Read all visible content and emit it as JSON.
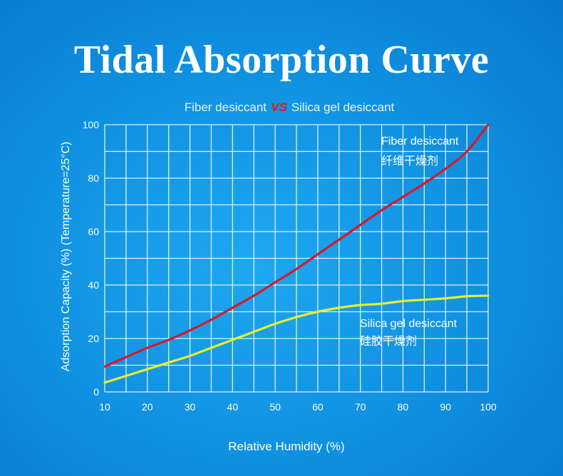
{
  "title": "Tidal Absorption Curve",
  "subtitle": {
    "left": "Fiber desiccant",
    "vs": "VS",
    "right": "Silica gel desiccant"
  },
  "colors": {
    "fiber": "#d9182a",
    "silica": "#e6ef2a",
    "grid": "#ffffff",
    "text": "#ffffff"
  },
  "chart_data": {
    "type": "line",
    "xlabel": "Relative Humidity (%)",
    "ylabel": "Adsorption Capacity (%) (Temperature=25°C)",
    "xlim": [
      10,
      100
    ],
    "ylim": [
      0,
      100
    ],
    "xticks": [
      10,
      20,
      30,
      40,
      50,
      60,
      70,
      80,
      90,
      100
    ],
    "yticks": [
      0,
      20,
      40,
      60,
      80,
      100
    ],
    "grid": true,
    "series": [
      {
        "name": "Fiber desiccant",
        "name_cn": "纤维干燥剂",
        "key": "fiber",
        "x": [
          10,
          15,
          20,
          25,
          30,
          35,
          40,
          45,
          50,
          55,
          60,
          65,
          70,
          75,
          80,
          85,
          90,
          95,
          100
        ],
        "y": [
          9.5,
          13,
          16.5,
          19.5,
          23,
          27,
          31.5,
          36,
          41,
          46,
          51.5,
          57,
          62.5,
          68,
          73,
          78,
          83.5,
          90,
          100
        ]
      },
      {
        "name": "Silica gel desiccant",
        "name_cn": "硅胶干燥剂",
        "key": "silica",
        "x": [
          10,
          15,
          20,
          25,
          30,
          35,
          40,
          45,
          50,
          55,
          60,
          65,
          70,
          75,
          80,
          85,
          90,
          95,
          100
        ],
        "y": [
          3.5,
          6,
          8.5,
          11,
          13.5,
          16.5,
          19.5,
          22.5,
          25.5,
          28,
          30,
          31.5,
          32.5,
          33,
          34,
          34.5,
          35,
          35.8,
          36
        ]
      }
    ]
  }
}
